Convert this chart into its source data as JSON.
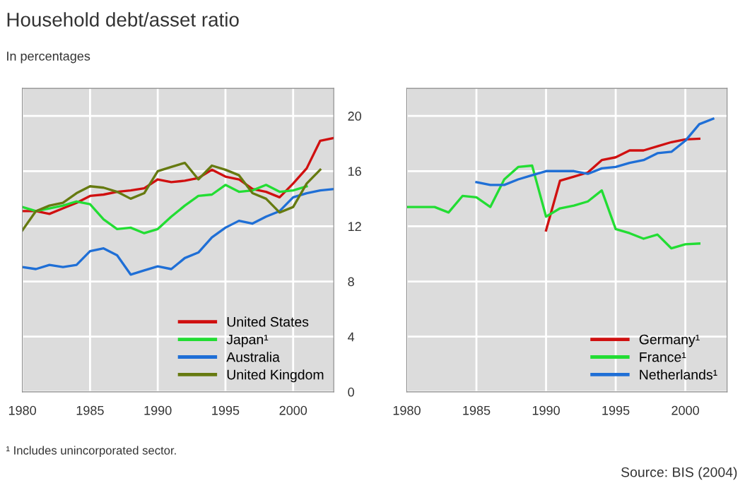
{
  "chart_data": [
    {
      "type": "line",
      "title": "Household debt/asset ratio",
      "subtitle": "In percentages",
      "annotations": [
        "¹ Includes unincorporated sector."
      ],
      "xlim": [
        1980,
        2003
      ],
      "xticks": [
        1980,
        1985,
        1990,
        1995,
        2000
      ],
      "ylim": [
        0,
        22
      ],
      "yticks": [
        0,
        4,
        8,
        12,
        16,
        20
      ],
      "grid": true,
      "legend": "bottom right",
      "line_style": "solid",
      "series": [
        {
          "name": "United States",
          "color": "#d01010",
          "x": [
            1980,
            1981,
            1982,
            1983,
            1984,
            1985,
            1986,
            1987,
            1988,
            1989,
            1990,
            1991,
            1992,
            1993,
            1994,
            1995,
            1996,
            1997,
            1998,
            1999,
            2000,
            2001,
            2002,
            2003
          ],
          "values": [
            13.1,
            13.1,
            12.9,
            13.3,
            13.7,
            14.2,
            14.3,
            14.5,
            14.6,
            14.75,
            15.4,
            15.2,
            15.3,
            15.5,
            16.1,
            15.6,
            15.4,
            14.7,
            14.5,
            14.1,
            15.1,
            16.2,
            18.2,
            18.4
          ]
        },
        {
          "name": "Japan¹",
          "color": "#22dd33",
          "x": [
            1980,
            1981,
            1982,
            1983,
            1984,
            1985,
            1986,
            1987,
            1988,
            1989,
            1990,
            1991,
            1992,
            1993,
            1994,
            1995,
            1996,
            1997,
            1998,
            1999,
            2000,
            2001
          ],
          "values": [
            13.4,
            13.1,
            13.3,
            13.5,
            13.8,
            13.6,
            12.5,
            11.8,
            11.9,
            11.5,
            11.8,
            12.7,
            13.5,
            14.2,
            14.3,
            15.0,
            14.5,
            14.6,
            15.0,
            14.5,
            14.6,
            14.9
          ]
        },
        {
          "name": "Australia",
          "color": "#1f6fd6",
          "x": [
            1980,
            1981,
            1982,
            1983,
            1984,
            1985,
            1986,
            1987,
            1988,
            1989,
            1990,
            1991,
            1992,
            1993,
            1994,
            1995,
            1996,
            1997,
            1998,
            1999,
            2000,
            2001,
            2002,
            2003
          ],
          "values": [
            9.05,
            8.9,
            9.2,
            9.05,
            9.2,
            10.2,
            10.4,
            9.9,
            8.5,
            8.8,
            9.1,
            8.9,
            9.7,
            10.1,
            11.2,
            11.9,
            12.4,
            12.2,
            12.7,
            13.1,
            14.1,
            14.4,
            14.6,
            14.7
          ]
        },
        {
          "name": "United Kingdom",
          "color": "#667a10",
          "x": [
            1980,
            1981,
            1982,
            1983,
            1984,
            1985,
            1986,
            1987,
            1988,
            1989,
            1990,
            1991,
            1992,
            1993,
            1994,
            1995,
            1996,
            1997,
            1998,
            1999,
            2000,
            2001,
            2002
          ],
          "values": [
            11.7,
            13.1,
            13.5,
            13.7,
            14.4,
            14.9,
            14.8,
            14.5,
            14.0,
            14.4,
            16.0,
            16.3,
            16.6,
            15.4,
            16.4,
            16.1,
            15.7,
            14.4,
            14.0,
            13.0,
            13.4,
            15.1,
            16.1
          ]
        }
      ]
    },
    {
      "type": "line",
      "annotations": [
        "Source: BIS (2004)"
      ],
      "xlim": [
        1980,
        2003
      ],
      "xticks": [
        1980,
        1985,
        1990,
        1995,
        2000
      ],
      "ylim": [
        0,
        22
      ],
      "yticks": [
        0,
        4,
        8,
        12,
        16,
        20
      ],
      "tick_labels": "x",
      "grid": true,
      "legend": "bottom right",
      "line_style": "solid",
      "series": [
        {
          "name": "Germany¹",
          "color": "#d01010",
          "x": [
            1990,
            1991,
            1992,
            1993,
            1994,
            1995,
            1996,
            1997,
            1998,
            1999,
            2000,
            2001
          ],
          "values": [
            11.7,
            15.3,
            15.6,
            15.9,
            16.8,
            17.0,
            17.5,
            17.5,
            17.8,
            18.1,
            18.3,
            18.35
          ]
        },
        {
          "name": "France¹",
          "color": "#22dd33",
          "x": [
            1980,
            1981,
            1982,
            1983,
            1984,
            1985,
            1986,
            1987,
            1988,
            1989,
            1990,
            1991,
            1992,
            1993,
            1994,
            1995,
            1996,
            1997,
            1998,
            1999,
            2000,
            2001
          ],
          "values": [
            13.4,
            13.4,
            13.4,
            13.0,
            14.2,
            14.1,
            13.4,
            15.4,
            16.3,
            16.4,
            12.7,
            13.3,
            13.5,
            13.8,
            14.6,
            11.8,
            11.5,
            11.1,
            11.4,
            10.4,
            10.7,
            10.75
          ]
        },
        {
          "name": "Netherlands¹",
          "color": "#1f6fd6",
          "x": [
            1985,
            1986,
            1987,
            1988,
            1989,
            1990,
            1991,
            1992,
            1993,
            1994,
            1995,
            1996,
            1997,
            1998,
            1999,
            2000,
            2001,
            2002
          ],
          "values": [
            15.2,
            15.0,
            15.0,
            15.4,
            15.7,
            16.0,
            16.0,
            16.0,
            15.8,
            16.2,
            16.3,
            16.6,
            16.8,
            17.3,
            17.4,
            18.2,
            19.4,
            19.8
          ]
        }
      ]
    }
  ]
}
